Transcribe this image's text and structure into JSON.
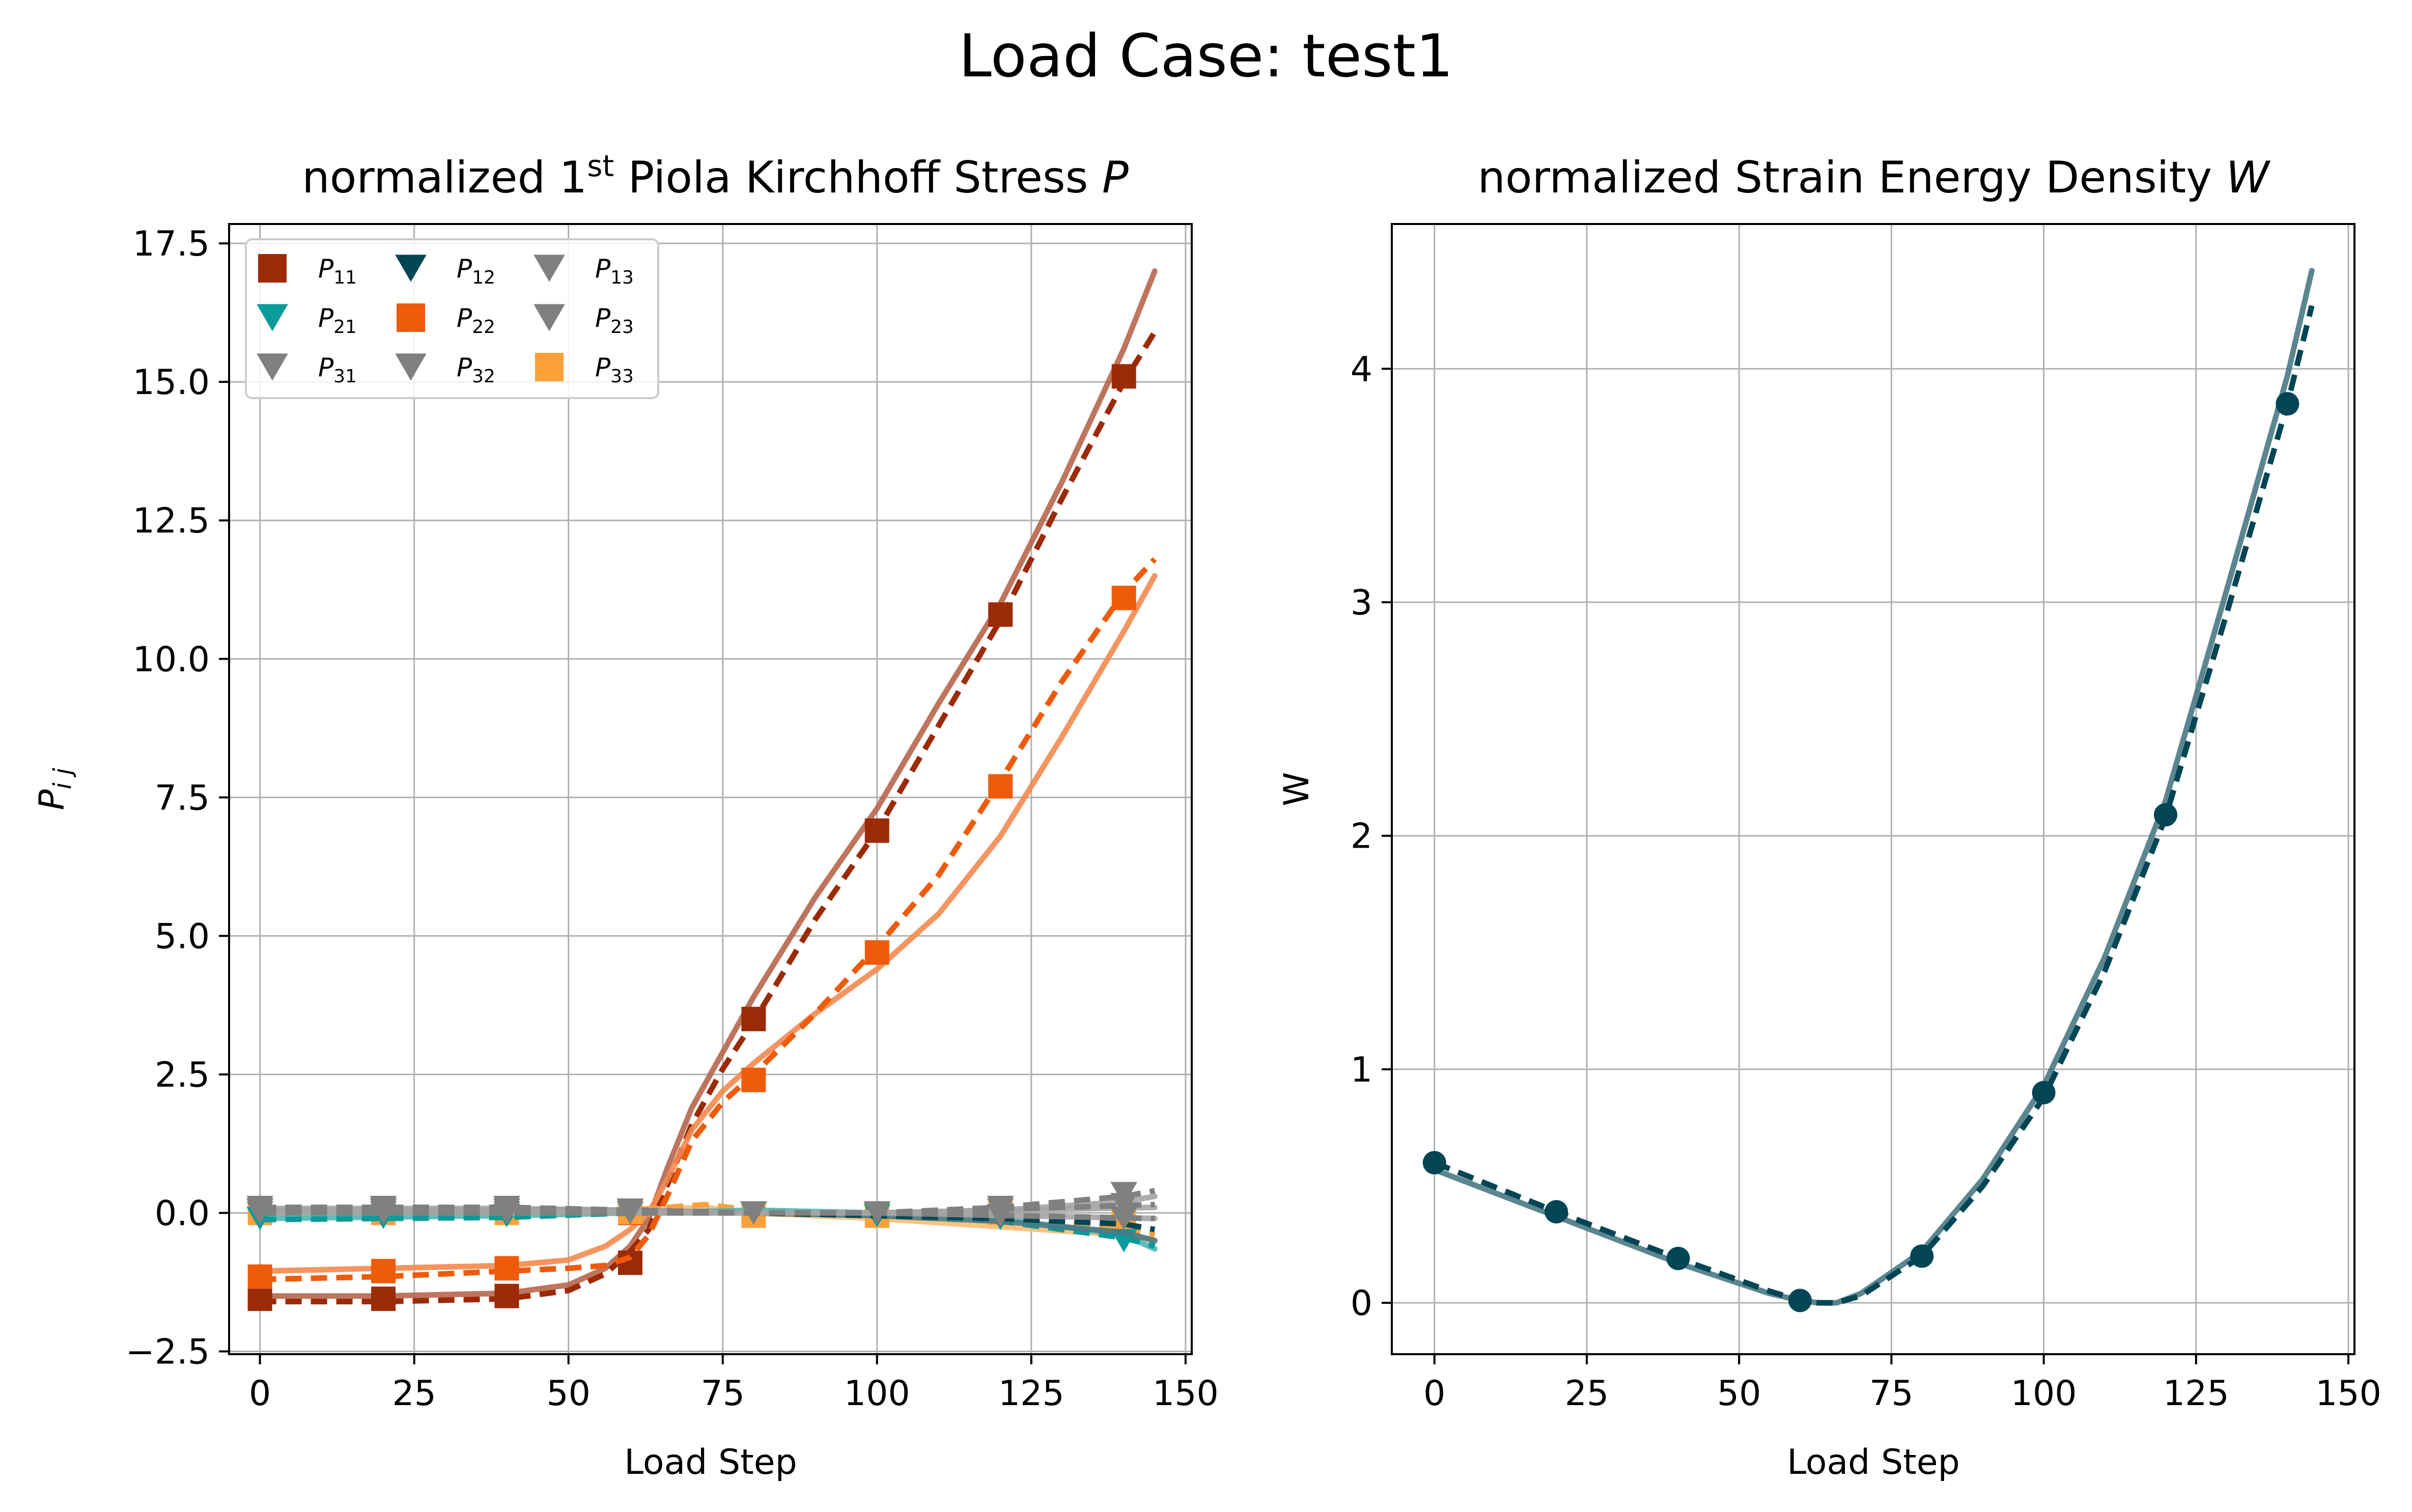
{
  "figure": {
    "suptitle": "Load Case: test1"
  },
  "chart_data": [
    {
      "type": "line",
      "title_prefix": "normalized 1",
      "title_sup": "st",
      "title_mid": " Piola Kirchhoff Stress ",
      "title_var": "P",
      "xlabel": "Load Step",
      "ylabel_base": "P",
      "ylabel_sub": "i j",
      "xlim": [
        -5,
        151
      ],
      "ylim": [
        -2.55,
        17.85
      ],
      "xticks": [
        0,
        25,
        50,
        75,
        100,
        125,
        150
      ],
      "xticklabels": [
        "0",
        "25",
        "50",
        "75",
        "100",
        "125",
        "150"
      ],
      "yticks": [
        -2.5,
        0.0,
        2.5,
        5.0,
        7.5,
        10.0,
        12.5,
        15.0,
        17.5
      ],
      "yticklabels": [
        "−2.5",
        "0.0",
        "2.5",
        "5.0",
        "7.5",
        "10.0",
        "12.5",
        "15.0",
        "17.5"
      ],
      "grid": true,
      "legend_position": "top-left",
      "legend_columns": 3,
      "legend": [
        {
          "base": "P",
          "sub": "11",
          "marker": "square",
          "color": "#9b2a06"
        },
        {
          "base": "P",
          "sub": "21",
          "marker": "triangle-down",
          "color": "#0c9a9a"
        },
        {
          "base": "P",
          "sub": "31",
          "marker": "triangle-down",
          "color": "#808080"
        },
        {
          "base": "P",
          "sub": "12",
          "marker": "triangle-down",
          "color": "#024554"
        },
        {
          "base": "P",
          "sub": "22",
          "marker": "square",
          "color": "#ee5b0b"
        },
        {
          "base": "P",
          "sub": "32",
          "marker": "triangle-down",
          "color": "#808080"
        },
        {
          "base": "P",
          "sub": "13",
          "marker": "triangle-down",
          "color": "#808080"
        },
        {
          "base": "P",
          "sub": "23",
          "marker": "triangle-down",
          "color": "#808080"
        },
        {
          "base": "P",
          "sub": "33",
          "marker": "square",
          "color": "#fca13a"
        }
      ],
      "series": [
        {
          "component": "11",
          "color": "#9b2a06",
          "data_x": [
            0,
            20,
            40,
            60,
            80,
            100,
            120,
            140
          ],
          "data_y": [
            -1.55,
            -1.55,
            -1.5,
            -0.9,
            3.5,
            6.9,
            10.8,
            15.1
          ],
          "dashed_x": [
            0,
            20,
            40,
            50,
            56,
            60,
            63,
            66,
            70,
            75,
            80,
            90,
            100,
            110,
            120,
            130,
            140,
            145
          ],
          "dashed_y": [
            -1.6,
            -1.6,
            -1.55,
            -1.4,
            -1.1,
            -0.7,
            -0.3,
            0.5,
            1.6,
            2.6,
            3.45,
            5.3,
            6.9,
            8.8,
            10.7,
            12.9,
            15.0,
            15.9
          ],
          "solid_x": [
            0,
            20,
            40,
            50,
            56,
            60,
            63,
            66,
            70,
            75,
            80,
            90,
            100,
            110,
            120,
            130,
            140,
            145
          ],
          "solid_y": [
            -1.5,
            -1.5,
            -1.45,
            -1.3,
            -1.0,
            -0.6,
            -0.1,
            0.8,
            1.9,
            2.9,
            3.9,
            5.7,
            7.3,
            9.2,
            11.0,
            13.2,
            15.6,
            17.0
          ]
        },
        {
          "component": "22",
          "color": "#ee5b0b",
          "data_x": [
            0,
            20,
            40,
            60,
            80,
            100,
            120,
            140
          ],
          "data_y": [
            -1.15,
            -1.05,
            -1.0,
            0.0,
            2.4,
            4.7,
            7.7,
            11.1
          ],
          "dashed_x": [
            0,
            20,
            40,
            50,
            56,
            60,
            63,
            66,
            70,
            75,
            80,
            90,
            100,
            110,
            120,
            130,
            140,
            145
          ],
          "dashed_y": [
            -1.2,
            -1.15,
            -1.05,
            -1.0,
            -0.95,
            -0.8,
            -0.4,
            0.3,
            1.3,
            2.0,
            2.5,
            3.6,
            4.8,
            6.1,
            7.8,
            9.6,
            11.2,
            11.8
          ],
          "solid_x": [
            0,
            20,
            40,
            50,
            56,
            60,
            63,
            66,
            70,
            75,
            80,
            90,
            100,
            110,
            120,
            130,
            140,
            145
          ],
          "solid_y": [
            -1.05,
            -1.0,
            -0.95,
            -0.85,
            -0.6,
            -0.3,
            0.0,
            0.6,
            1.5,
            2.2,
            2.7,
            3.6,
            4.4,
            5.4,
            6.8,
            8.6,
            10.5,
            11.5
          ]
        },
        {
          "component": "33",
          "color": "#fca13a",
          "data_x": [
            0,
            20,
            40,
            60,
            80,
            100,
            120,
            140
          ],
          "data_y": [
            0.0,
            0.0,
            0.0,
            0.02,
            -0.05,
            -0.05,
            0.0,
            -0.1
          ],
          "dashed_x": [
            0,
            20,
            40,
            60,
            72,
            80,
            100,
            120,
            140,
            145
          ],
          "dashed_y": [
            0.0,
            0.0,
            0.0,
            0.05,
            0.15,
            0.05,
            -0.05,
            -0.15,
            -0.3,
            -0.4
          ],
          "solid_x": [
            0,
            20,
            40,
            60,
            72,
            80,
            100,
            120,
            140,
            145
          ],
          "solid_y": [
            0.0,
            0.0,
            0.0,
            0.05,
            0.1,
            0.0,
            -0.1,
            -0.25,
            -0.4,
            -0.5
          ]
        },
        {
          "component": "21",
          "color": "#0c9a9a",
          "data_x": [
            0,
            20,
            40,
            60,
            80,
            100,
            120,
            140
          ],
          "data_y": [
            -0.1,
            -0.08,
            -0.05,
            0.0,
            0.0,
            -0.05,
            -0.1,
            -0.5
          ],
          "dashed_x": [
            0,
            40,
            60,
            80,
            100,
            120,
            140,
            145
          ],
          "dashed_y": [
            -0.12,
            -0.08,
            0.0,
            0.0,
            -0.05,
            -0.15,
            -0.45,
            -0.6
          ],
          "solid_x": [
            0,
            40,
            60,
            80,
            100,
            120,
            140,
            145
          ],
          "solid_y": [
            -0.1,
            -0.05,
            0.0,
            0.05,
            0.0,
            -0.1,
            -0.4,
            -0.65
          ]
        },
        {
          "component": "12",
          "color": "#024554",
          "data_x": [
            0,
            20,
            40,
            60,
            80,
            100,
            120,
            140
          ],
          "data_y": [
            0.05,
            0.05,
            0.05,
            0.05,
            0.0,
            0.0,
            -0.05,
            -0.1
          ],
          "dashed_x": [
            0,
            40,
            60,
            80,
            100,
            120,
            140,
            145
          ],
          "dashed_y": [
            0.05,
            0.05,
            0.05,
            0.0,
            -0.05,
            -0.1,
            -0.2,
            -0.3
          ],
          "solid_x": [
            0,
            40,
            60,
            80,
            100,
            120,
            140,
            145
          ],
          "solid_y": [
            0.05,
            0.05,
            0.05,
            0.0,
            -0.05,
            -0.15,
            -0.35,
            -0.5
          ]
        },
        {
          "component": "13",
          "color": "#808080",
          "data_x": [
            0,
            20,
            40,
            60,
            80,
            100,
            120,
            140
          ],
          "data_y": [
            0.1,
            0.1,
            0.1,
            0.05,
            0.0,
            0.0,
            0.1,
            0.35
          ],
          "dashed_x": [
            0,
            40,
            60,
            80,
            100,
            120,
            140,
            145
          ],
          "dashed_y": [
            0.1,
            0.1,
            0.05,
            0.0,
            0.0,
            0.1,
            0.3,
            0.4
          ],
          "solid_x": [
            0,
            40,
            60,
            80,
            100,
            120,
            140,
            145
          ],
          "solid_y": [
            0.08,
            0.08,
            0.05,
            0.0,
            0.0,
            0.05,
            0.2,
            0.3
          ]
        },
        {
          "component": "23",
          "color": "#808080",
          "data_x": [
            0,
            20,
            40,
            60,
            80,
            100,
            120,
            140
          ],
          "data_y": [
            0.05,
            0.05,
            0.05,
            0.0,
            0.0,
            0.0,
            0.05,
            0.15
          ],
          "dashed_x": [
            0,
            60,
            100,
            145
          ],
          "dashed_y": [
            0.05,
            0.0,
            0.0,
            0.15
          ],
          "solid_x": [
            0,
            60,
            100,
            145
          ],
          "solid_y": [
            0.05,
            0.0,
            0.0,
            0.1
          ]
        },
        {
          "component": "31",
          "color": "#808080",
          "data_x": [
            0,
            20,
            40,
            60,
            80,
            100,
            120,
            140
          ],
          "data_y": [
            0.0,
            0.0,
            0.0,
            0.0,
            0.0,
            0.0,
            -0.05,
            -0.1
          ],
          "dashed_x": [
            0,
            60,
            100,
            145
          ],
          "dashed_y": [
            0.0,
            0.0,
            0.0,
            -0.1
          ],
          "solid_x": [
            0,
            60,
            100,
            145
          ],
          "solid_y": [
            0.0,
            0.0,
            0.0,
            -0.1
          ]
        }
      ]
    },
    {
      "type": "line",
      "title_prefix": "normalized Strain Energy Density ",
      "title_var": "W",
      "xlabel": "Load Step",
      "ylabel": "W",
      "xlim": [
        -7,
        151
      ],
      "ylim": [
        -0.22,
        4.62
      ],
      "xticks": [
        0,
        25,
        50,
        75,
        100,
        125,
        150
      ],
      "xticklabels": [
        "0",
        "25",
        "50",
        "75",
        "100",
        "125",
        "150"
      ],
      "yticks": [
        0,
        1,
        2,
        3,
        4
      ],
      "yticklabels": [
        "0",
        "1",
        "2",
        "3",
        "4"
      ],
      "grid": true,
      "series": [
        {
          "name": "W",
          "color": "#024554",
          "data_x": [
            0,
            20,
            40,
            60,
            80,
            100,
            120,
            140
          ],
          "data_y": [
            0.6,
            0.39,
            0.19,
            0.01,
            0.2,
            0.9,
            2.09,
            3.85
          ],
          "dashed_x": [
            0,
            20,
            40,
            55,
            60,
            63,
            66,
            70,
            80,
            90,
            100,
            110,
            120,
            130,
            140,
            144
          ],
          "dashed_y": [
            0.6,
            0.39,
            0.19,
            0.05,
            0.01,
            0.0,
            0.0,
            0.03,
            0.2,
            0.5,
            0.88,
            1.42,
            2.08,
            2.95,
            3.85,
            4.27
          ],
          "solid_x": [
            0,
            20,
            40,
            55,
            60,
            63,
            66,
            70,
            80,
            90,
            100,
            110,
            120,
            130,
            140,
            144
          ],
          "solid_y": [
            0.57,
            0.37,
            0.17,
            0.04,
            0.01,
            0.0,
            0.0,
            0.04,
            0.22,
            0.53,
            0.93,
            1.48,
            2.15,
            3.05,
            3.97,
            4.42
          ]
        }
      ]
    }
  ]
}
